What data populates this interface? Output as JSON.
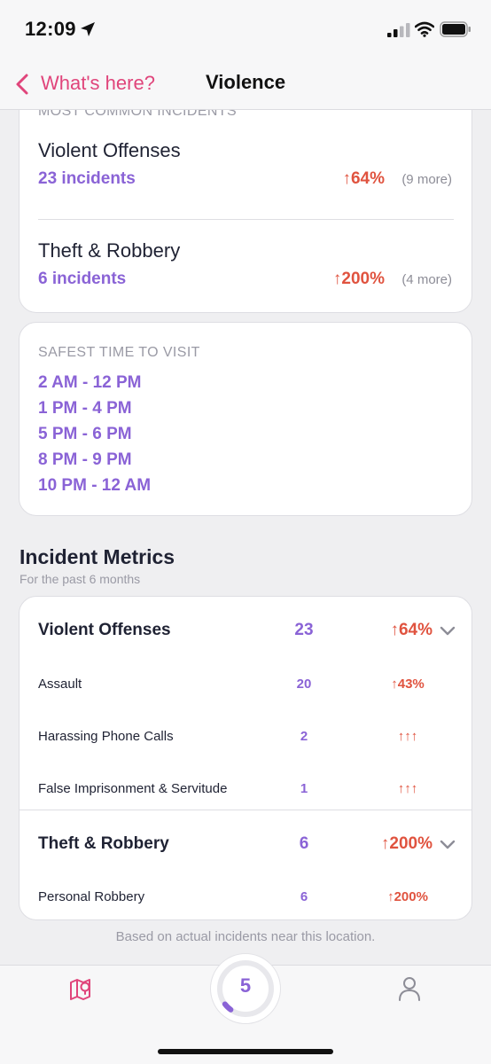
{
  "status_bar": {
    "time": "12:09"
  },
  "nav": {
    "back_label": "What's here?",
    "title": "Violence"
  },
  "most_common": {
    "heading": "MOST COMMON INCIDENTS",
    "items": [
      {
        "name": "Violent Offenses",
        "count": "23 incidents",
        "change": "↑64%",
        "more": "(9 more)"
      },
      {
        "name": "Theft & Robbery",
        "count": "6 incidents",
        "change": "↑200%",
        "more": "(4 more)"
      }
    ]
  },
  "safest": {
    "heading": "SAFEST TIME TO VISIT",
    "times": [
      "2 AM - 12 PM",
      "1 PM - 4 PM",
      "5 PM - 6 PM",
      "8 PM - 9 PM",
      "10 PM - 12 AM"
    ]
  },
  "metrics": {
    "title": "Incident Metrics",
    "subtitle": "For the past 6 months",
    "groups": [
      {
        "name": "Violent Offenses",
        "count": "23",
        "change": "↑64%",
        "items": [
          {
            "name": "Assault",
            "count": "20",
            "change": "↑43%"
          },
          {
            "name": "Harassing Phone Calls",
            "count": "2",
            "change": "↑↑↑"
          },
          {
            "name": "False Imprisonment & Servitude",
            "count": "1",
            "change": "↑↑↑"
          }
        ]
      },
      {
        "name": "Theft & Robbery",
        "count": "6",
        "change": "↑200%",
        "items": [
          {
            "name": "Personal Robbery",
            "count": "6",
            "change": "↑200%"
          }
        ]
      }
    ]
  },
  "footnote": "Based on actual incidents near this location.",
  "tab_bar": {
    "score": "5",
    "score_fraction": 0.05
  },
  "colors": {
    "accent_pink": "#e0457b",
    "accent_purple": "#8a63d6",
    "increase_red": "#e0533f"
  }
}
